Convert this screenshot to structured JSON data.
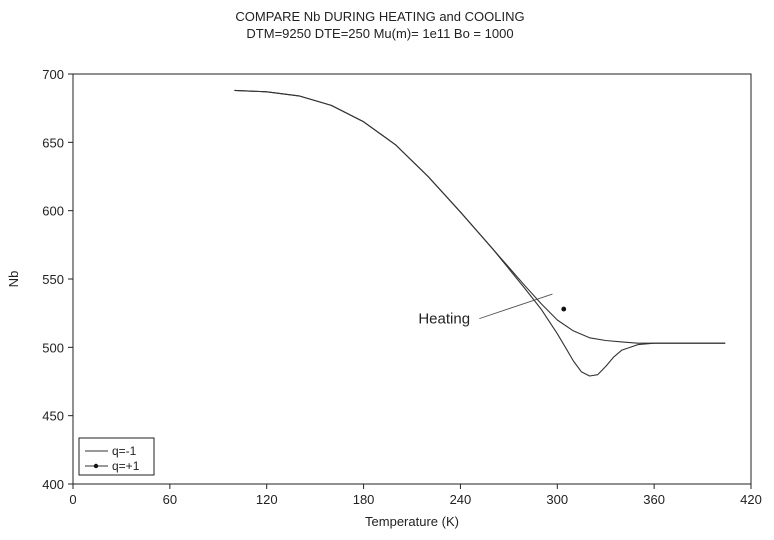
{
  "chart_data": {
    "type": "line",
    "title": "COMPARE Nb DURING HEATING and COOLING",
    "subtitle": "DTM=9250 DTE=250 Mu(m)= 1e11 Bo = 1000",
    "xlabel": "Temperature (K)",
    "ylabel": "Nb",
    "xlim": [
      0,
      420
    ],
    "ylim": [
      400,
      700
    ],
    "xticks": [
      0,
      60,
      120,
      180,
      240,
      300,
      360,
      420
    ],
    "yticks": [
      400,
      450,
      500,
      550,
      600,
      650,
      700
    ],
    "grid": false,
    "legend_position": "bottom-left",
    "series": [
      {
        "name": "q=-1",
        "marker": "none",
        "x": [
          100,
          120,
          140,
          160,
          180,
          200,
          220,
          240,
          260,
          280,
          290,
          300,
          310,
          320,
          330,
          340,
          350,
          360,
          370,
          380,
          390,
          404
        ],
        "y": [
          688,
          687,
          684,
          677,
          665,
          648,
          625,
          599,
          572,
          545,
          532,
          520,
          512,
          507,
          505,
          504,
          503,
          503,
          503,
          503,
          503,
          503
        ]
      },
      {
        "name": "q=+1",
        "marker": "dot",
        "x": [
          100,
          120,
          140,
          160,
          180,
          200,
          220,
          240,
          260,
          280,
          290,
          300,
          305,
          310,
          315,
          320,
          325,
          330,
          335,
          340,
          350,
          360,
          370,
          380,
          390,
          404
        ],
        "y": [
          688,
          687,
          684,
          677,
          665,
          648,
          625,
          599,
          572,
          543,
          528,
          510,
          500,
          490,
          482,
          479,
          480,
          486,
          493,
          498,
          502,
          503,
          503,
          503,
          503,
          503
        ],
        "marker_points": [
          [
            304,
            528
          ]
        ]
      }
    ],
    "annotations": [
      {
        "text": "Heating",
        "x": 248,
        "y": 521,
        "arrow_to": [
          297,
          539
        ]
      }
    ]
  }
}
